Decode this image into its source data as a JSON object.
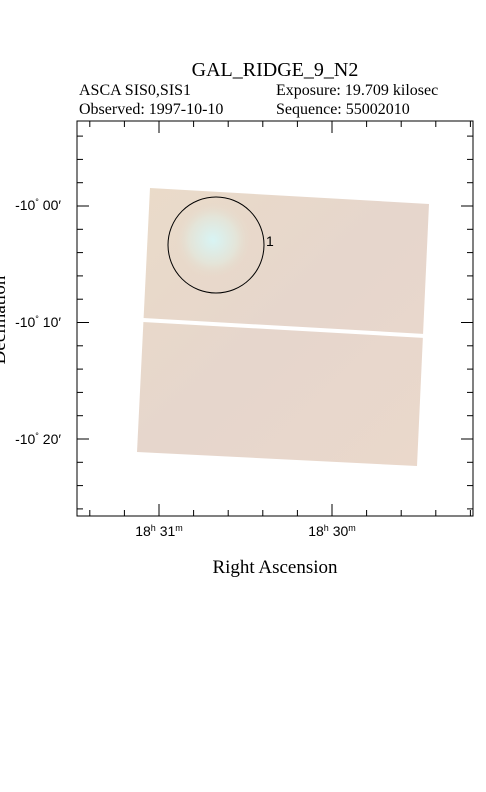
{
  "header": {
    "title": "GAL_RIDGE_9_N2",
    "instrument": "ASCA SIS0,SIS1",
    "exposure": "Exposure: 19.709 kilosec",
    "observed": "Observed: 1997-10-10",
    "sequence": "Sequence: 55002010"
  },
  "axes": {
    "x_label": "Right Ascension",
    "y_label": "Declination",
    "x_ticks": [
      {
        "hour": "18",
        "h": "h",
        "min": " 31",
        "m": "m"
      },
      {
        "hour": "18",
        "h": "h",
        "min": " 30",
        "m": "m"
      }
    ],
    "y_ticks": [
      {
        "deg": "-10",
        "d": "°",
        "min": " 00",
        "m": "′"
      },
      {
        "deg": "-10",
        "d": "°",
        "min": " 10",
        "m": "′"
      },
      {
        "deg": "-10",
        "d": "°",
        "min": " 20",
        "m": "′"
      }
    ]
  },
  "sources": [
    {
      "label": "1"
    }
  ]
}
